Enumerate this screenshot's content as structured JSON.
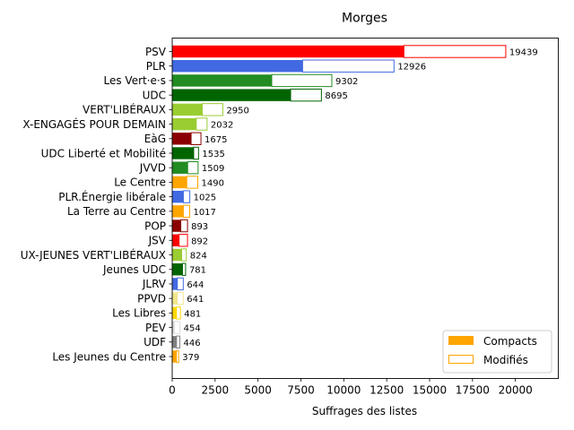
{
  "chart_data": {
    "type": "bar",
    "orientation": "horizontal",
    "stacked": true,
    "title": "Morges",
    "xlabel": "Suffrages des listes",
    "ylabel": "",
    "xlim": [
      0,
      22500
    ],
    "xticks": [
      0,
      2500,
      5000,
      7500,
      10000,
      12500,
      15000,
      17500,
      20000
    ],
    "xtick_labels": [
      "0",
      "2500",
      "5000",
      "7500",
      "10000",
      "12500",
      "15000",
      "17500",
      "20000"
    ],
    "grid": false,
    "legend_position": "lower-right",
    "legend": [
      {
        "label": "Compacts",
        "style": "filled",
        "color": "#ffa500"
      },
      {
        "label": "Modifiés",
        "style": "outline",
        "color": "#ffa500"
      }
    ],
    "lists": [
      {
        "name": "PSV",
        "compacts": 13500,
        "modifies": 5939,
        "total": "19439",
        "color": "#ff0000"
      },
      {
        "name": "PLR",
        "compacts": 7600,
        "modifies": 5326,
        "total": "12926",
        "color": "#4169e1"
      },
      {
        "name": "Les Vert·e·s",
        "compacts": 5800,
        "modifies": 3502,
        "total": "9302",
        "color": "#228b22"
      },
      {
        "name": "UDC",
        "compacts": 6900,
        "modifies": 1795,
        "total": "8695",
        "color": "#006400"
      },
      {
        "name": "VERT'LIBÉRAUX",
        "compacts": 1750,
        "modifies": 1200,
        "total": "2950",
        "color": "#9acd32"
      },
      {
        "name": "X-ENGAGÉS POUR DEMAIN",
        "compacts": 1400,
        "modifies": 632,
        "total": "2032",
        "color": "#9acd32"
      },
      {
        "name": "EàG",
        "compacts": 1100,
        "modifies": 575,
        "total": "1675",
        "color": "#8b0000"
      },
      {
        "name": "UDC Liberté et Mobilité",
        "compacts": 1250,
        "modifies": 285,
        "total": "1535",
        "color": "#006400"
      },
      {
        "name": "JVVD",
        "compacts": 900,
        "modifies": 609,
        "total": "1509",
        "color": "#228b22"
      },
      {
        "name": "Le Centre",
        "compacts": 850,
        "modifies": 640,
        "total": "1490",
        "color": "#ffa500"
      },
      {
        "name": "PLR.Énergie libérale",
        "compacts": 650,
        "modifies": 375,
        "total": "1025",
        "color": "#4169e1"
      },
      {
        "name": "La Terre au Centre",
        "compacts": 650,
        "modifies": 367,
        "total": "1017",
        "color": "#ffa500"
      },
      {
        "name": "POP",
        "compacts": 500,
        "modifies": 393,
        "total": "893",
        "color": "#8b0000"
      },
      {
        "name": "JSV",
        "compacts": 400,
        "modifies": 492,
        "total": "892",
        "color": "#ff0000"
      },
      {
        "name": "UX-JEUNES VERT'LIBÉRAUX",
        "compacts": 550,
        "modifies": 274,
        "total": "824",
        "color": "#9acd32"
      },
      {
        "name": "Jeunes UDC",
        "compacts": 600,
        "modifies": 181,
        "total": "781",
        "color": "#006400"
      },
      {
        "name": "JLRV",
        "compacts": 300,
        "modifies": 344,
        "total": "644",
        "color": "#4169e1"
      },
      {
        "name": "PPVD",
        "compacts": 300,
        "modifies": 341,
        "total": "641",
        "color": "#f0e68c"
      },
      {
        "name": "Les Libres",
        "compacts": 250,
        "modifies": 231,
        "total": "481",
        "color": "#ffd700"
      },
      {
        "name": "PEV",
        "compacts": 120,
        "modifies": 334,
        "total": "454",
        "color": "#dcdcdc"
      },
      {
        "name": "UDF",
        "compacts": 250,
        "modifies": 196,
        "total": "446",
        "color": "#808080"
      },
      {
        "name": "Les Jeunes du Centre",
        "compacts": 250,
        "modifies": 129,
        "total": "379",
        "color": "#ffa500"
      }
    ]
  }
}
